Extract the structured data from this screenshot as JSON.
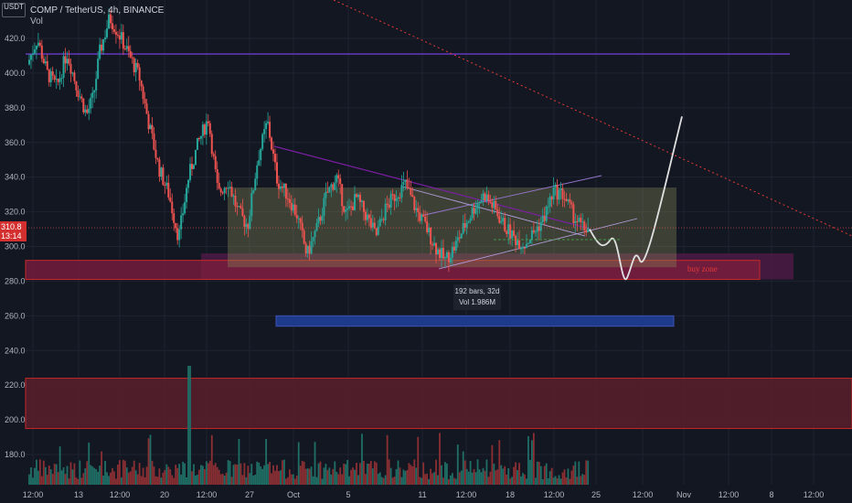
{
  "header": {
    "title": "COMP / TetherUS, 4h, BINANCE",
    "vol_label": "Vol",
    "currency": "USDT"
  },
  "price_badge": {
    "price": "310.8",
    "countdown": "13:14"
  },
  "tooltip": {
    "bars": "192 bars, 32d",
    "vol": "Vol 1.986M"
  },
  "annotations": {
    "buy_zone": "buy zone"
  },
  "colors": {
    "background": "#131722",
    "up": "#26a69a",
    "down": "#ef5350",
    "purple_line": "#7b1fa2",
    "resistance_purple": "#5e35b1",
    "range_box": "#8d8f5a",
    "buy_zone_fill": "#6a1b3a",
    "measure_blue": "#1e3a8a"
  },
  "chart_data": {
    "type": "candlestick",
    "symbol": "COMP / TetherUS",
    "timeframe": "4h",
    "exchange": "BINANCE",
    "y_ticks": [
      420,
      400,
      380,
      360,
      340,
      320,
      300,
      280,
      260,
      240,
      220,
      200,
      180
    ],
    "ylim": [
      163,
      429
    ],
    "x_ticks": [
      "12:00",
      "13",
      "12:00",
      "20",
      "12:00",
      "27",
      "Oct",
      "5",
      "11",
      "12:00",
      "18",
      "12:00",
      "25",
      "12:00",
      "Nov",
      "12:00",
      "8",
      "12:00"
    ],
    "last_price": 310.8,
    "price_path": [
      {
        "t": 0,
        "p": 405
      },
      {
        "t": 3,
        "p": 420
      },
      {
        "t": 6,
        "p": 400
      },
      {
        "t": 9,
        "p": 392
      },
      {
        "t": 12,
        "p": 412
      },
      {
        "t": 15,
        "p": 392
      },
      {
        "t": 18,
        "p": 376
      },
      {
        "t": 20,
        "p": 386
      },
      {
        "t": 22,
        "p": 412
      },
      {
        "t": 25,
        "p": 432
      },
      {
        "t": 28,
        "p": 422
      },
      {
        "t": 31,
        "p": 410
      },
      {
        "t": 34,
        "p": 398
      },
      {
        "t": 37,
        "p": 370
      },
      {
        "t": 40,
        "p": 345
      },
      {
        "t": 43,
        "p": 330
      },
      {
        "t": 46,
        "p": 305
      },
      {
        "t": 49,
        "p": 340
      },
      {
        "t": 52,
        "p": 360
      },
      {
        "t": 55,
        "p": 374
      },
      {
        "t": 58,
        "p": 330
      },
      {
        "t": 61,
        "p": 338
      },
      {
        "t": 64,
        "p": 320
      },
      {
        "t": 67,
        "p": 312
      },
      {
        "t": 70,
        "p": 350
      },
      {
        "t": 73,
        "p": 372
      },
      {
        "t": 76,
        "p": 338
      },
      {
        "t": 79,
        "p": 330
      },
      {
        "t": 82,
        "p": 318
      },
      {
        "t": 85,
        "p": 295
      },
      {
        "t": 88,
        "p": 310
      },
      {
        "t": 91,
        "p": 330
      },
      {
        "t": 94,
        "p": 340
      },
      {
        "t": 97,
        "p": 318
      },
      {
        "t": 100,
        "p": 328
      },
      {
        "t": 103,
        "p": 318
      },
      {
        "t": 106,
        "p": 306
      },
      {
        "t": 109,
        "p": 322
      },
      {
        "t": 112,
        "p": 330
      },
      {
        "t": 115,
        "p": 336
      },
      {
        "t": 118,
        "p": 322
      },
      {
        "t": 121,
        "p": 312
      },
      {
        "t": 124,
        "p": 300
      },
      {
        "t": 127,
        "p": 292
      },
      {
        "t": 130,
        "p": 300
      },
      {
        "t": 133,
        "p": 312
      },
      {
        "t": 136,
        "p": 323
      },
      {
        "t": 139,
        "p": 330
      },
      {
        "t": 142,
        "p": 322
      },
      {
        "t": 145,
        "p": 312
      },
      {
        "t": 148,
        "p": 305
      },
      {
        "t": 151,
        "p": 301
      },
      {
        "t": 154,
        "p": 308
      },
      {
        "t": 157,
        "p": 316
      },
      {
        "t": 160,
        "p": 332
      },
      {
        "t": 163,
        "p": 330
      },
      {
        "t": 166,
        "p": 318
      },
      {
        "t": 169,
        "p": 310
      },
      {
        "t": 171,
        "p": 311
      }
    ],
    "drawings": {
      "horizontal_line": 411,
      "range_box": {
        "low": 288,
        "high": 334
      },
      "buy_zone": {
        "low": 281,
        "high": 296
      },
      "lower_zone": {
        "low": 195,
        "high": 224
      },
      "measure": {
        "low": 254,
        "high": 260,
        "label": "192 bars, 32d",
        "volume": "Vol 1.986M"
      },
      "projection": [
        310,
        304,
        300,
        288,
        282,
        300,
        330,
        375
      ]
    }
  }
}
